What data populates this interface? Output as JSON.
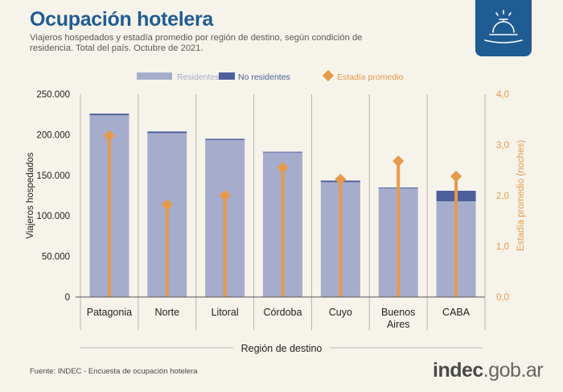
{
  "header": {
    "title": "Ocupación hotelera",
    "subtitle": "Viajeros hospedados y estadía promedio por región de destino, según condición de residencia. Total del país. Octubre de 2021."
  },
  "footer": {
    "source": "Fuente: INDEC - Encuesta de ocupación hotelera",
    "brand_main": "indec",
    "brand_domain": ".gob.ar"
  },
  "icons": {
    "logo": "service-bell-icon"
  },
  "colors": {
    "residentes": "#a6adcc",
    "no_residentes": "#4d5f9c",
    "estadia": "#e79a4a",
    "title": "#1f5c93"
  },
  "chart_data": {
    "type": "bar",
    "stacked": true,
    "categories": [
      "Patagonia",
      "Norte",
      "Litoral",
      "Córdoba",
      "Cuyo",
      "Buenos Aires",
      "CABA"
    ],
    "category_lines": [
      [
        "Patagonia"
      ],
      [
        "Norte"
      ],
      [
        "Litoral"
      ],
      [
        "Córdoba"
      ],
      [
        "Cuyo"
      ],
      [
        "Buenos",
        "Aires"
      ],
      [
        "CABA"
      ]
    ],
    "series": [
      {
        "name": "Residentes",
        "axis": "left",
        "values": [
          224000,
          202000,
          193500,
          178000,
          141500,
          134000,
          118000
        ]
      },
      {
        "name": "No residentes",
        "axis": "left",
        "values": [
          2000,
          2000,
          1500,
          1000,
          2000,
          1000,
          13000
        ]
      },
      {
        "name": "Estadía promedio",
        "axis": "right",
        "kind": "lollipop",
        "values": [
          3.18,
          1.82,
          2.0,
          2.55,
          2.32,
          2.68,
          2.38
        ]
      }
    ],
    "xlabel": "Región de destino",
    "ylabel": "Viajeros hospedados",
    "y2label": "Estadía promedio (noches)",
    "ylim": [
      0,
      250000
    ],
    "y2lim": [
      0,
      4
    ],
    "yticks": [
      "0",
      "50.000",
      "100.000",
      "150.000",
      "200.000",
      "250.000"
    ],
    "y2ticks": [
      "0,0",
      "1,0",
      "2,0",
      "3,0",
      "4,0"
    ],
    "legend_position": "top"
  }
}
